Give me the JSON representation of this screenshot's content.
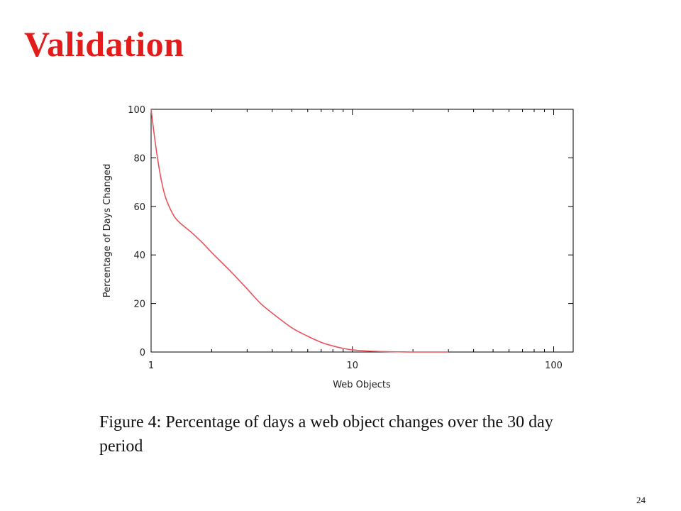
{
  "slide": {
    "title": "Validation",
    "caption": "Figure 4: Percentage of days a web object changes over the 30 day period",
    "page_number": "24"
  },
  "chart_data": {
    "type": "line",
    "title": "",
    "xlabel": "Web Objects",
    "ylabel": "Percentage of Days Changed",
    "xscale": "log",
    "xlim": [
      1,
      125
    ],
    "ylim": [
      0,
      100
    ],
    "xticks": [
      1,
      10,
      100
    ],
    "yticks": [
      0,
      20,
      40,
      60,
      80,
      100
    ],
    "grid": false,
    "legend": "none",
    "series": [
      {
        "color": "#e8545a",
        "x": [
          1,
          1.05,
          1.1,
          1.15,
          1.2,
          1.3,
          1.4,
          1.6,
          1.8,
          2,
          2.5,
          3,
          3.5,
          4,
          5,
          6,
          7,
          8,
          9,
          10,
          12,
          15,
          18,
          20,
          30
        ],
        "y": [
          100,
          86,
          75,
          67,
          62,
          56,
          53,
          49,
          45,
          41,
          33,
          26,
          20,
          16,
          10,
          6.5,
          4,
          2.5,
          1.5,
          0.9,
          0.4,
          0.15,
          0.05,
          0,
          0
        ]
      }
    ]
  }
}
